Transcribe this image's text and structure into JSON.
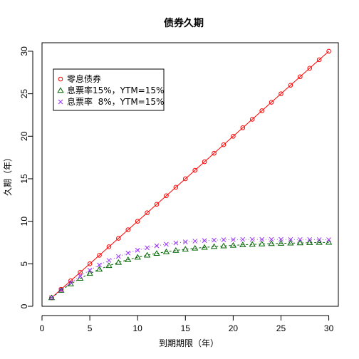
{
  "chart_data": {
    "type": "line",
    "title": "债券久期",
    "xlabel": "到期期限（年）",
    "ylabel": "久期（年）",
    "xlim": [
      0,
      31
    ],
    "ylim": [
      0,
      31
    ],
    "x_ticks": [
      0,
      5,
      10,
      15,
      20,
      25,
      30
    ],
    "y_ticks": [
      0,
      5,
      10,
      15,
      20,
      25,
      30
    ],
    "grid": false,
    "legend_position": "top-left",
    "x": [
      1,
      2,
      3,
      4,
      5,
      6,
      7,
      8,
      9,
      10,
      11,
      12,
      13,
      14,
      15,
      16,
      17,
      18,
      19,
      20,
      21,
      22,
      23,
      24,
      25,
      26,
      27,
      28,
      29,
      30
    ],
    "series": [
      {
        "name": "零息债券",
        "marker": "circle",
        "color": "#ff0000",
        "values": [
          1,
          2,
          3,
          4,
          5,
          6,
          7,
          8,
          9,
          10,
          11,
          12,
          13,
          14,
          15,
          16,
          17,
          18,
          19,
          20,
          21,
          22,
          23,
          24,
          25,
          26,
          27,
          28,
          29,
          30
        ]
      },
      {
        "name": "息票率15%，YTM=15%",
        "marker": "triangle",
        "color": "#006400",
        "values": [
          1.0,
          1.87,
          2.62,
          3.28,
          3.86,
          4.35,
          4.78,
          5.16,
          5.48,
          5.77,
          6.01,
          6.22,
          6.41,
          6.57,
          6.71,
          6.83,
          6.93,
          7.02,
          7.1,
          7.17,
          7.23,
          7.28,
          7.33,
          7.37,
          7.4,
          7.43,
          7.45,
          7.48,
          7.5,
          7.52
        ]
      },
      {
        "name": "息票率  8%，YTM=15%",
        "marker": "cross",
        "color": "#9b30ff",
        "values": [
          1.0,
          1.93,
          2.78,
          3.55,
          4.25,
          4.86,
          5.4,
          5.86,
          6.26,
          6.6,
          6.88,
          7.11,
          7.3,
          7.45,
          7.57,
          7.66,
          7.73,
          7.78,
          7.82,
          7.84,
          7.86,
          7.87,
          7.87,
          7.87,
          7.87,
          7.86,
          7.85,
          7.85,
          7.84,
          7.83
        ]
      }
    ]
  }
}
